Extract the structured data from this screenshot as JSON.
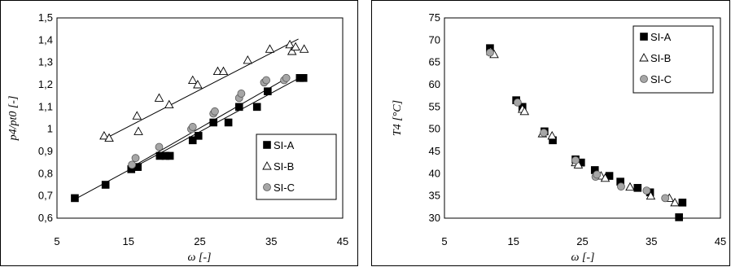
{
  "chart_data": [
    {
      "type": "scatter",
      "xlabel": "ω [-]",
      "ylabel": "p4/pt0 [-]",
      "xlim": [
        5,
        45
      ],
      "ylim": [
        0.6,
        1.5
      ],
      "xticks": [
        "5",
        "15",
        "25",
        "35",
        "45"
      ],
      "yticks": [
        "0,6",
        "0,7",
        "0,8",
        "0,9",
        "1",
        "1,1",
        "1,2",
        "1,3",
        "1,4",
        "1,5"
      ],
      "legend_position": "bottom-right",
      "series": [
        {
          "name": "SI-A",
          "marker": "filled-square",
          "color": "#000000",
          "x": [
            7.5,
            11.8,
            15.4,
            16.3,
            19.4,
            20.2,
            20.8,
            24.0,
            24.8,
            26.9,
            29.0,
            30.5,
            33.0,
            34.5,
            39.0,
            39.5
          ],
          "y": [
            0.69,
            0.75,
            0.82,
            0.83,
            0.88,
            0.88,
            0.88,
            0.95,
            0.97,
            1.03,
            1.03,
            1.1,
            1.1,
            1.17,
            1.23,
            1.23
          ],
          "fit": [
            [
              7.5,
              0.685
            ],
            [
              39.5,
              1.24
            ]
          ]
        },
        {
          "name": "SI-B",
          "marker": "hollow-triangle",
          "color": "#000000",
          "x": [
            11.6,
            12.3,
            16.2,
            16.4,
            19.3,
            20.7,
            24.0,
            24.7,
            27.5,
            28.3,
            31.7,
            34.8,
            37.6,
            37.9,
            38.4,
            39.6
          ],
          "y": [
            0.97,
            0.96,
            1.06,
            0.99,
            1.14,
            1.11,
            1.22,
            1.2,
            1.26,
            1.26,
            1.31,
            1.36,
            1.38,
            1.35,
            1.37,
            1.36
          ],
          "fit": [
            [
              11.6,
              0.955
            ],
            [
              38.8,
              1.405
            ]
          ]
        },
        {
          "name": "SI-C",
          "marker": "gray-circle",
          "color": "#a6a6a6",
          "x": [
            15.5,
            16.0,
            19.3,
            23.8,
            24.0,
            26.9,
            27.1,
            30.5,
            30.8,
            34.0,
            34.3,
            36.8,
            37.1
          ],
          "y": [
            0.84,
            0.87,
            0.92,
            1.0,
            1.01,
            1.07,
            1.08,
            1.14,
            1.16,
            1.21,
            1.22,
            1.22,
            1.23
          ],
          "fit": [
            [
              15.5,
              0.83
            ],
            [
              37.2,
              1.23
            ]
          ]
        }
      ]
    },
    {
      "type": "scatter",
      "xlabel": "ω [-]",
      "ylabel": "T4 [°C]",
      "xlim": [
        5,
        45
      ],
      "ylim": [
        30,
        75
      ],
      "xticks": [
        "5",
        "15",
        "25",
        "35",
        "45"
      ],
      "yticks": [
        "30",
        "35",
        "40",
        "45",
        "50",
        "55",
        "60",
        "65",
        "70",
        "75"
      ],
      "legend_position": "top-right",
      "series": [
        {
          "name": "SI-A",
          "marker": "filled-square",
          "color": "#000000",
          "x": [
            11.6,
            15.4,
            16.3,
            19.5,
            20.7,
            24.0,
            24.8,
            26.8,
            28.9,
            30.5,
            33.0,
            34.8,
            39.0,
            39.5
          ],
          "y": [
            68.2,
            56.5,
            55.0,
            49.5,
            47.5,
            43.2,
            42.5,
            40.8,
            39.5,
            38.2,
            36.8,
            35.8,
            30.2,
            33.5
          ]
        },
        {
          "name": "SI-B",
          "marker": "hollow-triangle",
          "color": "#000000",
          "x": [
            11.7,
            12.2,
            16.3,
            16.6,
            19.2,
            20.6,
            24.0,
            24.4,
            27.7,
            28.3,
            31.9,
            34.9,
            37.6,
            38.4
          ],
          "y": [
            67.5,
            66.8,
            54.5,
            54.0,
            49.0,
            48.5,
            42.5,
            42.0,
            39.5,
            39.0,
            37.0,
            35.0,
            34.5,
            33.5
          ]
        },
        {
          "name": "SI-C",
          "marker": "gray-circle",
          "color": "#a6a6a6",
          "x": [
            11.6,
            15.6,
            19.4,
            24.0,
            26.9,
            27.1,
            30.6,
            34.3,
            37.0
          ],
          "y": [
            67.2,
            56.0,
            49.2,
            43.0,
            39.3,
            39.8,
            37.1,
            36.2,
            34.5
          ]
        }
      ]
    }
  ]
}
